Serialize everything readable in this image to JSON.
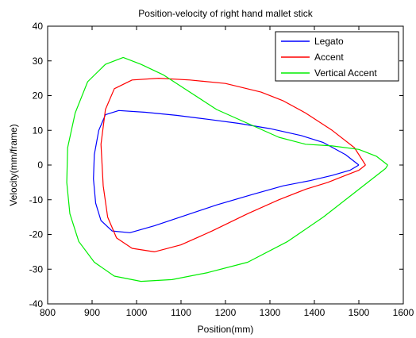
{
  "chart_data": {
    "type": "line",
    "title": "Position-velocity of right hand mallet stick",
    "xlabel": "Position(mm)",
    "ylabel": "Velocity(mm/frame)",
    "xlim": [
      800,
      1600
    ],
    "ylim": [
      -40,
      40
    ],
    "xticks": [
      800,
      900,
      1000,
      1100,
      1200,
      1300,
      1400,
      1500,
      1600
    ],
    "yticks": [
      -40,
      -30,
      -20,
      -10,
      0,
      10,
      20,
      30,
      40
    ],
    "grid": false,
    "legend_position": "top-right",
    "series": [
      {
        "name": "Legato",
        "color": "#0000ff",
        "x": [
          1500,
          1470,
          1420,
          1370,
          1300,
          1230,
          1160,
          1090,
          1020,
          960,
          930,
          915,
          905,
          903,
          908,
          920,
          945,
          985,
          1040,
          1110,
          1180,
          1260,
          1330,
          1390,
          1440,
          1480,
          1500
        ],
        "y": [
          0,
          3,
          6.5,
          8.5,
          10.5,
          12,
          13.2,
          14.3,
          15.2,
          15.7,
          14.5,
          10,
          3,
          -4,
          -11,
          -16,
          -19,
          -19.5,
          -17.5,
          -14.5,
          -11.5,
          -8.5,
          -6,
          -4.5,
          -3,
          -1.5,
          0
        ]
      },
      {
        "name": "Accent",
        "color": "#ff0000",
        "x": [
          1515,
          1490,
          1440,
          1380,
          1330,
          1280,
          1200,
          1120,
          1050,
          990,
          950,
          930,
          920,
          925,
          935,
          955,
          990,
          1040,
          1100,
          1170,
          1250,
          1320,
          1380,
          1430,
          1470,
          1500,
          1515
        ],
        "y": [
          0,
          5,
          10,
          15,
          18.5,
          21,
          23.5,
          24.5,
          25,
          24.5,
          22,
          16,
          6,
          -6,
          -15,
          -21,
          -24,
          -25,
          -23,
          -19,
          -14,
          -10,
          -7,
          -5,
          -3,
          -1.5,
          0
        ]
      },
      {
        "name": "Vertical Accent",
        "color": "#00ee00",
        "x": [
          1565,
          1540,
          1500,
          1440,
          1380,
          1320,
          1250,
          1180,
          1120,
          1060,
          1010,
          970,
          930,
          890,
          862,
          845,
          843,
          850,
          870,
          905,
          950,
          1010,
          1080,
          1160,
          1250,
          1340,
          1420,
          1480,
          1530,
          1560,
          1565
        ],
        "y": [
          0,
          2.5,
          4.5,
          5.5,
          6,
          8,
          12,
          16,
          21,
          26,
          29,
          31,
          29,
          24,
          15,
          5,
          -5,
          -14,
          -22,
          -28,
          -32,
          -33.5,
          -33,
          -31,
          -28,
          -22,
          -15,
          -9,
          -4,
          -1,
          0
        ]
      }
    ]
  }
}
